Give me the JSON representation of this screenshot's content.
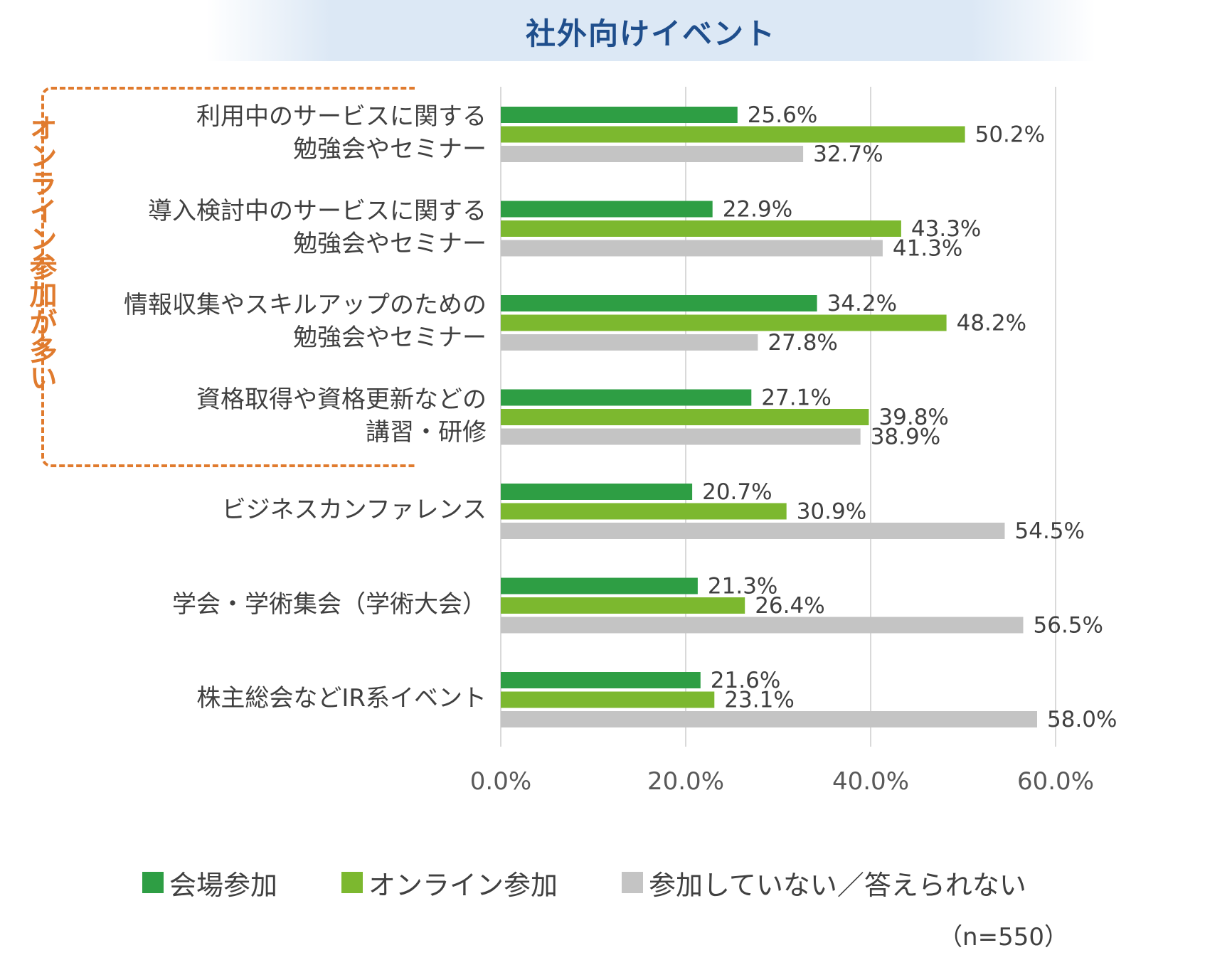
{
  "chart_data": {
    "type": "bar",
    "orientation": "horizontal",
    "title": "社外向けイベント",
    "categories": [
      [
        "利用中のサービスに関する",
        "勉強会やセミナー"
      ],
      [
        "導入検討中のサービスに関する",
        "勉強会やセミナー"
      ],
      [
        "情報収集やスキルアップのための",
        "勉強会やセミナー"
      ],
      [
        "資格取得や資格更新などの",
        "講習・研修"
      ],
      [
        "ビジネスカンファレンス"
      ],
      [
        "学会・学術集会（学術大会）"
      ],
      [
        "株主総会などIR系イベント"
      ]
    ],
    "series": [
      {
        "name": "会場参加",
        "color": "#2e9e44",
        "values": [
          25.6,
          22.9,
          34.2,
          27.1,
          20.7,
          21.3,
          21.6
        ]
      },
      {
        "name": "オンライン参加",
        "color": "#7cb82f",
        "values": [
          50.2,
          43.3,
          48.2,
          39.8,
          30.9,
          26.4,
          23.1
        ]
      },
      {
        "name": "参加していない／答えられない",
        "color": "#c4c4c4",
        "values": [
          32.7,
          41.3,
          27.8,
          38.9,
          54.5,
          56.5,
          58.0
        ]
      }
    ],
    "xlim": [
      0,
      60
    ],
    "xticks": [
      0,
      20,
      40,
      60
    ],
    "xtick_labels": [
      "0.0%",
      "20.0%",
      "40.0%",
      "60.0%"
    ],
    "value_suffix": "%",
    "grid": true,
    "legend_position": "bottom",
    "annotation": "オンライン参加が多い",
    "sample_size": "（n=550）"
  },
  "colors": {
    "title": "#1f4e8c",
    "annotation": "#e07b2e",
    "text": "#404040",
    "grid": "#d9d9d9"
  }
}
